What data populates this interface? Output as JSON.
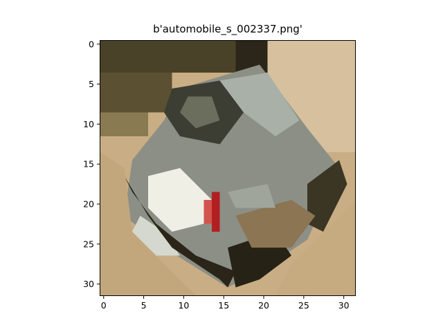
{
  "figure": {
    "title": "b'automobile_s_002337.png'"
  },
  "image": {
    "subject": "pixelated low-resolution photo of a silver car viewed from above at an angle, tan background, red tail light",
    "grid_size": [
      32,
      32
    ],
    "palette": {
      "dark_olive": "#3d3623",
      "olive": "#6a5e38",
      "tan": "#c9ad84",
      "light_tan": "#dcc6a6",
      "gray": "#7f8479",
      "light_gray": "#b7bcb4",
      "dark": "#1f1c14",
      "white": "#f1f0e8",
      "red": "#b21f22",
      "brown": "#8b7552"
    }
  },
  "axes": {
    "x_ticks": [
      "0",
      "5",
      "10",
      "15",
      "20",
      "25",
      "30"
    ],
    "y_ticks": [
      "0",
      "5",
      "10",
      "15",
      "20",
      "25",
      "30"
    ],
    "xlim": [
      -0.5,
      31.5
    ],
    "ylim": [
      31.5,
      -0.5
    ]
  }
}
